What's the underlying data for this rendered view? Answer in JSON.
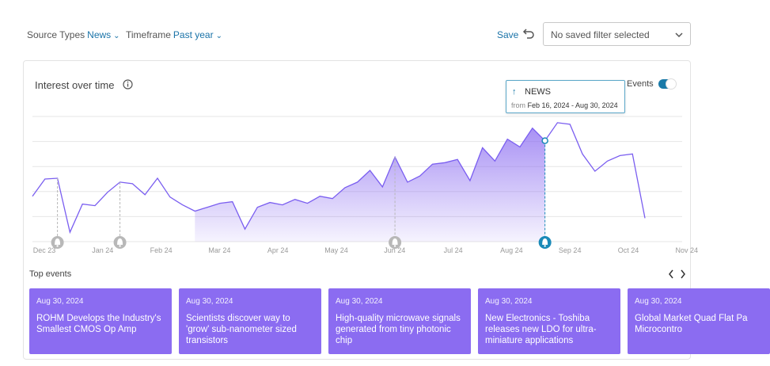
{
  "filters": {
    "source_types": {
      "label": "Source Types",
      "value": "News"
    },
    "timeframe": {
      "label": "Timeframe",
      "value": "Past year"
    }
  },
  "save_label": "Save",
  "saved_filter": {
    "value": "No saved filter selected"
  },
  "card": {
    "title": "Interest over time",
    "events_label": "Events",
    "events_toggle_on": true
  },
  "tooltip": {
    "label": "NEWS",
    "from_label": "from",
    "range": "Feb 16, 2024 - Aug 30, 2024"
  },
  "chart_data": {
    "type": "area",
    "title": "",
    "x_ticks": [
      "Dec 23",
      "Jan 24",
      "Feb 24",
      "Mar 24",
      "Apr 24",
      "May 24",
      "Jun 24",
      "Jul 24",
      "Aug 24",
      "Sep 24",
      "Oct 24",
      "Nov 24"
    ],
    "y": [
      58,
      80,
      81,
      12,
      48,
      46,
      63,
      76,
      74,
      60,
      81,
      57,
      47,
      39,
      44,
      49,
      51,
      16,
      44,
      50,
      47,
      54,
      49,
      58,
      55,
      69,
      76,
      91,
      70,
      108,
      76,
      84,
      99,
      101,
      105,
      78,
      120,
      103,
      131,
      121,
      145,
      129,
      152,
      150,
      112,
      90,
      103,
      110,
      112,
      30
    ],
    "highlight_range": [
      "Feb 16, 2024",
      "Aug 30, 2024"
    ],
    "series": [
      {
        "name": "NEWS"
      }
    ],
    "grid": true
  },
  "top_events": {
    "heading": "Top events",
    "items": [
      {
        "date": "Aug 30, 2024",
        "title": "ROHM Develops the Industry's Smallest CMOS Op Amp"
      },
      {
        "date": "Aug 30, 2024",
        "title": "Scientists discover way to 'grow' sub-nanometer sized transistors"
      },
      {
        "date": "Aug 30, 2024",
        "title": "High-quality microwave signals generated from tiny photonic chip"
      },
      {
        "date": "Aug 30, 2024",
        "title": "New Electronics - Toshiba releases new LDO for ultra-miniature applications"
      },
      {
        "date": "Aug 30, 2024",
        "title": "Global Market Quad Flat Pa Microcontro"
      }
    ]
  },
  "colors": {
    "accent": "#1a73a8",
    "line": "#7a5ef0",
    "area": "#8b6cf1",
    "event_card": "#8b6cf1",
    "event_marker": "#b8b8b8",
    "event_marker_active": "#1a8ab8"
  }
}
